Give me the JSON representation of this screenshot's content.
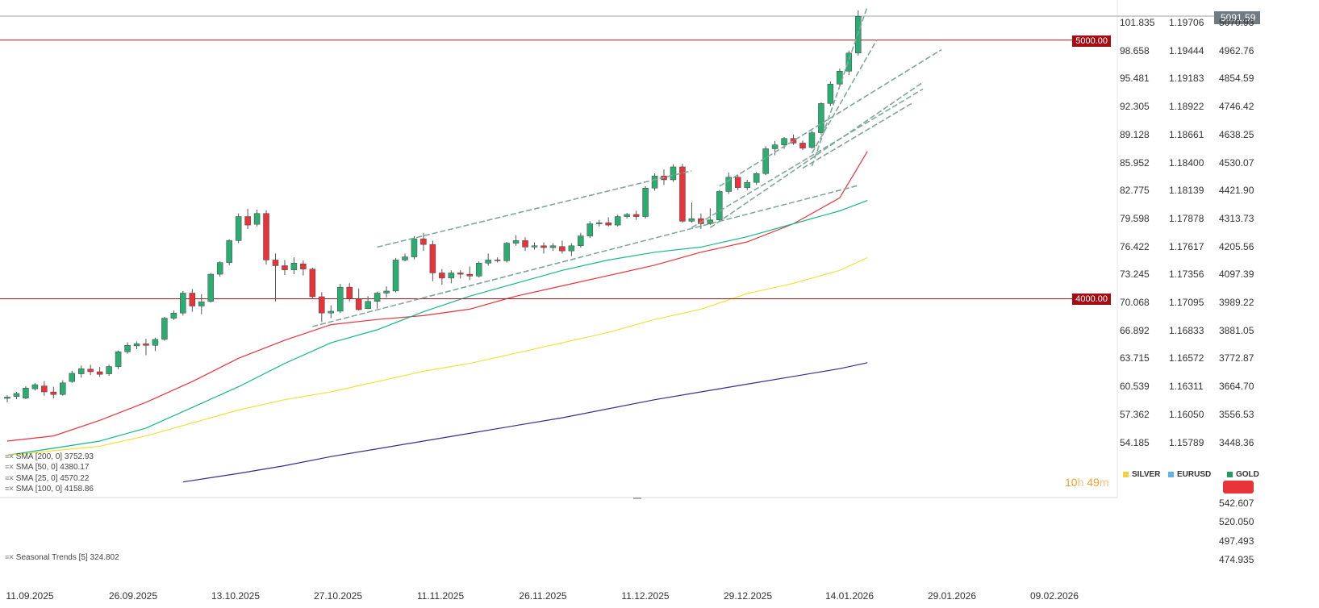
{
  "window": {
    "current_price": "5091.59"
  },
  "levels": [
    {
      "label": "5000.00",
      "value": 5000
    },
    {
      "label": "4000.00",
      "value": 4000
    }
  ],
  "indicators": [
    {
      "label": "SMA  [200,  0]  3752.93",
      "color": "#3b2a8f"
    },
    {
      "label": "SMA  [50,  0]  4380.17",
      "color": "#14b88a"
    },
    {
      "label": "SMA  [25,  0]  4570.22",
      "color": "#e8333b"
    },
    {
      "label": "SMA  [100,  0]  4158.86",
      "color": "#f2e23a"
    }
  ],
  "subpanel": {
    "label": "Seasonal  Trends  [5]  324.802",
    "ticks": [
      "542.607",
      "520.050",
      "497.493",
      "474.935"
    ]
  },
  "countdown": {
    "hours": "10",
    "minutes": "49",
    "h": "h",
    "m": "m"
  },
  "symbols": [
    {
      "name": "SILVER",
      "color": "#f2d13a"
    },
    {
      "name": "EURUSD",
      "color": "#5bb6e6"
    },
    {
      "name": "GOLD",
      "color": "#1fa05a"
    }
  ],
  "chart_data": {
    "type": "candlestick",
    "x_tick_labels": [
      "11.09.2025",
      "26.09.2025",
      "13.10.2025",
      "27.10.2025",
      "11.11.2025",
      "26.11.2025",
      "11.12.2025",
      "29.12.2025",
      "14.01.2026",
      "29.01.2026",
      "09.02.2026"
    ],
    "ylim": [
      3340,
      5140
    ],
    "y_axis_right": [
      "5070.93",
      "4962.76",
      "4854.59",
      "4746.42",
      "4638.25",
      "4530.07",
      "4421.90",
      "4313.73",
      "4205.56",
      "4097.39",
      "3989.22",
      "3881.05",
      "3772.87",
      "3664.70",
      "3556.53",
      "3448.36"
    ],
    "y_axis_silver": [
      "101.835",
      "98.658",
      "95.481",
      "92.305",
      "89.128",
      "85.952",
      "82.775",
      "79.598",
      "76.422",
      "73.245",
      "70.068",
      "66.892",
      "63.715",
      "60.539",
      "57.362",
      "54.185"
    ],
    "y_axis_eurusd": [
      "1.19706",
      "1.19444",
      "1.19183",
      "1.18922",
      "1.18661",
      "1.18400",
      "1.18139",
      "1.17878",
      "1.17617",
      "1.17356",
      "1.17095",
      "1.16833",
      "1.16572",
      "1.16311",
      "1.16050",
      "1.15789"
    ],
    "candles": [
      [
        3615,
        3627,
        3600,
        3620
      ],
      [
        3622,
        3640,
        3612,
        3634
      ],
      [
        3616,
        3662,
        3612,
        3655
      ],
      [
        3652,
        3675,
        3645,
        3668
      ],
      [
        3663,
        3682,
        3625,
        3640
      ],
      [
        3640,
        3660,
        3615,
        3630
      ],
      [
        3630,
        3685,
        3625,
        3675
      ],
      [
        3680,
        3722,
        3675,
        3712
      ],
      [
        3710,
        3742,
        3695,
        3730
      ],
      [
        3728,
        3745,
        3705,
        3718
      ],
      [
        3718,
        3736,
        3698,
        3708
      ],
      [
        3710,
        3745,
        3702,
        3738
      ],
      [
        3738,
        3800,
        3728,
        3795
      ],
      [
        3795,
        3832,
        3788,
        3820
      ],
      [
        3818,
        3835,
        3805,
        3826
      ],
      [
        3826,
        3845,
        3782,
        3820
      ],
      [
        3820,
        3850,
        3798,
        3843
      ],
      [
        3843,
        3930,
        3838,
        3925
      ],
      [
        3925,
        3955,
        3918,
        3945
      ],
      [
        3945,
        4030,
        3935,
        4022
      ],
      [
        4022,
        4038,
        3950,
        3972
      ],
      [
        3972,
        4018,
        3940,
        3988
      ],
      [
        3990,
        4100,
        3985,
        4095
      ],
      [
        4095,
        4145,
        4085,
        4140
      ],
      [
        4140,
        4230,
        4130,
        4225
      ],
      [
        4225,
        4330,
        4215,
        4318
      ],
      [
        4318,
        4348,
        4270,
        4285
      ],
      [
        4288,
        4345,
        4280,
        4330
      ],
      [
        4330,
        4342,
        4132,
        4150
      ],
      [
        4150,
        4175,
        3990,
        4128
      ],
      [
        4128,
        4150,
        4092,
        4112
      ],
      [
        4112,
        4160,
        4095,
        4138
      ],
      [
        4135,
        4148,
        4090,
        4115
      ],
      [
        4115,
        4120,
        4000,
        4008
      ],
      [
        4008,
        4025,
        3910,
        3945
      ],
      [
        3945,
        3975,
        3925,
        3952
      ],
      [
        3952,
        4058,
        3945,
        4045
      ],
      [
        4045,
        4060,
        3990,
        4000
      ],
      [
        4000,
        4040,
        3955,
        3958
      ],
      [
        3962,
        4010,
        3960,
        3990
      ],
      [
        3990,
        4028,
        3962,
        4022
      ],
      [
        4022,
        4048,
        4005,
        4030
      ],
      [
        4030,
        4158,
        4025,
        4150
      ],
      [
        4150,
        4175,
        4145,
        4162
      ],
      [
        4162,
        4242,
        4152,
        4232
      ],
      [
        4232,
        4255,
        4185,
        4210
      ],
      [
        4210,
        4225,
        4068,
        4100
      ],
      [
        4100,
        4115,
        4055,
        4080
      ],
      [
        4080,
        4110,
        4060,
        4100
      ],
      [
        4100,
        4110,
        4078,
        4095
      ],
      [
        4095,
        4125,
        4072,
        4088
      ],
      [
        4088,
        4145,
        4082,
        4138
      ],
      [
        4138,
        4175,
        4128,
        4150
      ],
      [
        4150,
        4160,
        4140,
        4147
      ],
      [
        4147,
        4220,
        4140,
        4215
      ],
      [
        4215,
        4245,
        4205,
        4225
      ],
      [
        4225,
        4238,
        4185,
        4200
      ],
      [
        4200,
        4218,
        4190,
        4205
      ],
      [
        4205,
        4218,
        4175,
        4198
      ],
      [
        4198,
        4215,
        4185,
        4205
      ],
      [
        4202,
        4225,
        4175,
        4185
      ],
      [
        4185,
        4215,
        4165,
        4205
      ],
      [
        4205,
        4255,
        4198,
        4243
      ],
      [
        4243,
        4300,
        4235,
        4290
      ],
      [
        4290,
        4305,
        4280,
        4294
      ],
      [
        4294,
        4315,
        4280,
        4285
      ],
      [
        4285,
        4325,
        4280,
        4318
      ],
      [
        4318,
        4332,
        4310,
        4326
      ],
      [
        4326,
        4340,
        4305,
        4318
      ],
      [
        4318,
        4435,
        4310,
        4428
      ],
      [
        4428,
        4485,
        4418,
        4475
      ],
      [
        4475,
        4500,
        4440,
        4460
      ],
      [
        4460,
        4520,
        4452,
        4510
      ],
      [
        4510,
        4522,
        4295,
        4300
      ],
      [
        4300,
        4372,
        4295,
        4310
      ],
      [
        4310,
        4330,
        4270,
        4290
      ],
      [
        4290,
        4350,
        4285,
        4305
      ],
      [
        4305,
        4420,
        4300,
        4415
      ],
      [
        4415,
        4488,
        4405,
        4470
      ],
      [
        4470,
        4480,
        4420,
        4430
      ],
      [
        4430,
        4460,
        4420,
        4450
      ],
      [
        4450,
        4490,
        4440,
        4484
      ],
      [
        4484,
        4590,
        4478,
        4580
      ],
      [
        4580,
        4610,
        4555,
        4595
      ],
      [
        4595,
        4625,
        4580,
        4620
      ],
      [
        4620,
        4635,
        4595,
        4602
      ],
      [
        4602,
        4612,
        4575,
        4582
      ],
      [
        4585,
        4650,
        4580,
        4642
      ],
      [
        4642,
        4760,
        4635,
        4755
      ],
      [
        4755,
        4840,
        4745,
        4830
      ],
      [
        4830,
        4890,
        4820,
        4880
      ],
      [
        4880,
        4960,
        4865,
        4950
      ],
      [
        4950,
        5115,
        4940,
        5092
      ]
    ],
    "sma_series": [
      {
        "name": "SMA 25",
        "color": "#e8333b",
        "points": [
          [
            0,
            3450
          ],
          [
            5,
            3470
          ],
          [
            10,
            3530
          ],
          [
            15,
            3600
          ],
          [
            20,
            3680
          ],
          [
            25,
            3770
          ],
          [
            30,
            3840
          ],
          [
            35,
            3900
          ],
          [
            40,
            3920
          ],
          [
            45,
            3935
          ],
          [
            50,
            3960
          ],
          [
            55,
            4010
          ],
          [
            60,
            4050
          ],
          [
            65,
            4090
          ],
          [
            70,
            4130
          ],
          [
            75,
            4180
          ],
          [
            80,
            4220
          ],
          [
            85,
            4290
          ],
          [
            90,
            4390
          ],
          [
            93,
            4570
          ]
        ]
      },
      {
        "name": "SMA 50",
        "color": "#14b88a",
        "points": [
          [
            0,
            3395
          ],
          [
            10,
            3450
          ],
          [
            15,
            3500
          ],
          [
            20,
            3580
          ],
          [
            25,
            3660
          ],
          [
            30,
            3750
          ],
          [
            35,
            3830
          ],
          [
            40,
            3880
          ],
          [
            45,
            3950
          ],
          [
            50,
            4010
          ],
          [
            55,
            4060
          ],
          [
            60,
            4110
          ],
          [
            65,
            4150
          ],
          [
            70,
            4180
          ],
          [
            75,
            4200
          ],
          [
            80,
            4240
          ],
          [
            85,
            4290
          ],
          [
            90,
            4340
          ],
          [
            93,
            4380
          ]
        ]
      },
      {
        "name": "SMA 100",
        "color": "#f2e23a",
        "points": [
          [
            0,
            3395
          ],
          [
            10,
            3430
          ],
          [
            15,
            3470
          ],
          [
            20,
            3520
          ],
          [
            25,
            3570
          ],
          [
            30,
            3610
          ],
          [
            35,
            3640
          ],
          [
            40,
            3680
          ],
          [
            45,
            3720
          ],
          [
            50,
            3750
          ],
          [
            55,
            3790
          ],
          [
            60,
            3830
          ],
          [
            65,
            3870
          ],
          [
            70,
            3920
          ],
          [
            75,
            3960
          ],
          [
            80,
            4020
          ],
          [
            85,
            4060
          ],
          [
            90,
            4110
          ],
          [
            93,
            4159
          ]
        ]
      },
      {
        "name": "SMA 200",
        "color": "#3b2a8f",
        "points": [
          [
            19,
            3292
          ],
          [
            25,
            3325
          ],
          [
            30,
            3355
          ],
          [
            35,
            3390
          ],
          [
            40,
            3420
          ],
          [
            45,
            3450
          ],
          [
            50,
            3480
          ],
          [
            55,
            3510
          ],
          [
            60,
            3540
          ],
          [
            65,
            3575
          ],
          [
            70,
            3610
          ],
          [
            75,
            3640
          ],
          [
            80,
            3670
          ],
          [
            85,
            3700
          ],
          [
            90,
            3730
          ],
          [
            93,
            3753
          ]
        ]
      }
    ],
    "trendlines": [
      [
        [
          40,
          4200
        ],
        [
          74,
          4495
        ]
      ],
      [
        [
          33,
          3893
        ],
        [
          92,
          4438
        ]
      ],
      [
        [
          74,
          4275
        ],
        [
          99,
          4811
        ]
      ],
      [
        [
          77,
          4435
        ],
        [
          101,
          4963
        ]
      ],
      [
        [
          86,
          4505
        ],
        [
          98,
          4760
        ]
      ],
      [
        [
          76,
          4275
        ],
        [
          99,
          4837
        ]
      ],
      [
        [
          87,
          4513
        ],
        [
          93,
          5130
        ]
      ],
      [
        [
          87,
          4563
        ],
        [
          94,
          5000
        ]
      ]
    ]
  }
}
